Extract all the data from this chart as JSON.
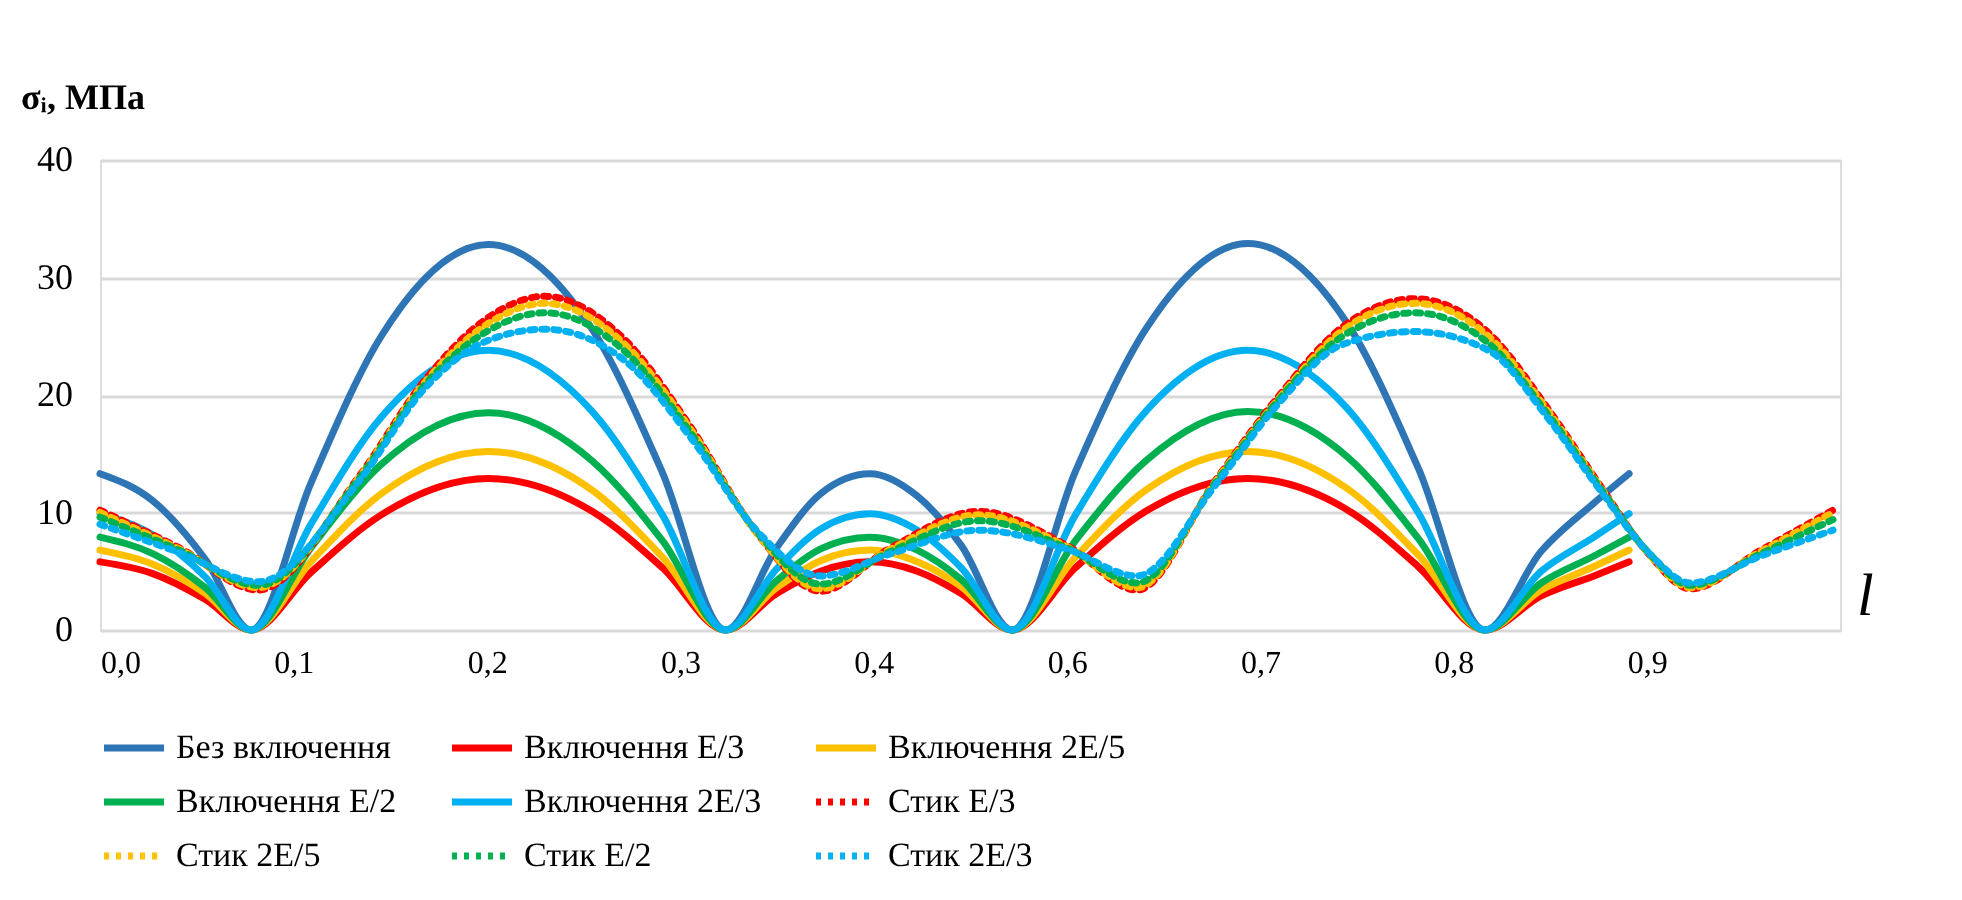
{
  "chart_data": {
    "type": "line",
    "ylabel": "σᵢ, МПа",
    "xlabel": "l",
    "xlim": [
      0,
      0.99
    ],
    "ylim": [
      0,
      40
    ],
    "xticks": [
      {
        "value": 0,
        "label": "0,0"
      },
      {
        "value": 0.11,
        "label": "0,1"
      },
      {
        "value": 0.22,
        "label": "0,2"
      },
      {
        "value": 0.33,
        "label": "0,3"
      },
      {
        "value": 0.44,
        "label": "0,4"
      },
      {
        "value": 0.55,
        "label": "0,6"
      },
      {
        "value": 0.66,
        "label": "0,7"
      },
      {
        "value": 0.77,
        "label": "0,8"
      },
      {
        "value": 0.88,
        "label": "0,9"
      }
    ],
    "yticks": [
      0,
      10,
      20,
      30,
      40
    ],
    "grid": "y",
    "legend": "bottom",
    "marker": "none",
    "series": [
      {
        "name": "Без включення",
        "color": "#2e75b6",
        "line_style": "solid",
        "x": [
          0,
          0.03,
          0.06,
          0.086,
          0.12,
          0.16,
          0.221,
          0.28,
          0.32,
          0.356,
          0.385,
          0.41,
          0.438,
          0.465,
          0.49,
          0.519,
          0.555,
          0.595,
          0.653,
          0.71,
          0.75,
          0.788,
          0.82,
          0.85,
          0.87
        ],
        "values": [
          13.3,
          11.0,
          6.0,
          0,
          12.5,
          25.0,
          32.8,
          25.6,
          13.4,
          0,
          7.0,
          11.6,
          13.3,
          11.4,
          7.2,
          0,
          13.5,
          25.6,
          32.9,
          26.0,
          13.8,
          0,
          6.7,
          10.8,
          13.3
        ]
      },
      {
        "name": "Включення E/3",
        "color": "#ff0000",
        "line_style": "solid",
        "x": [
          0,
          0.03,
          0.06,
          0.086,
          0.12,
          0.16,
          0.221,
          0.28,
          0.32,
          0.356,
          0.385,
          0.41,
          0.438,
          0.465,
          0.49,
          0.519,
          0.555,
          0.595,
          0.653,
          0.71,
          0.75,
          0.788,
          0.82,
          0.85,
          0.87
        ],
        "values": [
          5.8,
          4.8,
          2.6,
          0,
          4.9,
          9.8,
          12.9,
          10.1,
          5.3,
          0,
          3.1,
          5.0,
          5.8,
          5.0,
          3.1,
          0,
          5.3,
          10.1,
          12.9,
          10.2,
          5.4,
          0,
          2.9,
          4.6,
          5.8
        ]
      },
      {
        "name": "Включення 2E/5",
        "color": "#ffc000",
        "line_style": "solid",
        "x": [
          0,
          0.03,
          0.06,
          0.086,
          0.12,
          0.16,
          0.221,
          0.28,
          0.32,
          0.356,
          0.385,
          0.41,
          0.438,
          0.465,
          0.49,
          0.519,
          0.555,
          0.595,
          0.653,
          0.71,
          0.75,
          0.788,
          0.82,
          0.85,
          0.87
        ],
        "values": [
          6.8,
          5.6,
          3.1,
          0,
          5.8,
          11.6,
          15.2,
          11.9,
          6.2,
          0,
          3.6,
          5.9,
          6.8,
          5.8,
          3.7,
          0,
          6.2,
          11.9,
          15.2,
          12.0,
          6.4,
          0,
          3.4,
          5.4,
          6.8
        ]
      },
      {
        "name": "Включення E/2",
        "color": "#00b050",
        "line_style": "solid",
        "x": [
          0,
          0.03,
          0.06,
          0.086,
          0.12,
          0.16,
          0.221,
          0.28,
          0.32,
          0.356,
          0.385,
          0.41,
          0.438,
          0.465,
          0.49,
          0.519,
          0.555,
          0.595,
          0.653,
          0.71,
          0.75,
          0.788,
          0.82,
          0.85,
          0.87
        ],
        "values": [
          7.9,
          6.5,
          3.6,
          0,
          7.0,
          14.1,
          18.5,
          14.4,
          7.6,
          0,
          4.2,
          6.9,
          7.9,
          6.8,
          4.3,
          0,
          7.6,
          14.4,
          18.6,
          14.7,
          7.8,
          0,
          4.0,
          6.3,
          7.9
        ]
      },
      {
        "name": "Включення 2E/3",
        "color": "#00b0f0",
        "line_style": "solid",
        "x": [
          0,
          0.03,
          0.06,
          0.086,
          0.12,
          0.16,
          0.221,
          0.28,
          0.32,
          0.356,
          0.385,
          0.41,
          0.438,
          0.465,
          0.49,
          0.519,
          0.555,
          0.595,
          0.653,
          0.71,
          0.75,
          0.788,
          0.82,
          0.85,
          0.87
        ],
        "values": [
          9.9,
          8.1,
          4.5,
          0,
          9.0,
          18.1,
          23.8,
          18.6,
          9.8,
          0,
          5.2,
          8.6,
          9.9,
          8.5,
          5.3,
          0,
          9.8,
          18.6,
          23.8,
          18.8,
          10.0,
          0,
          5.0,
          7.9,
          9.9
        ]
      },
      {
        "name": "Стик E/3",
        "color": "#ff0000",
        "line_style": "dotted",
        "x": [
          0,
          0.045,
          0.09,
          0.147,
          0.185,
          0.22,
          0.253,
          0.298,
          0.336,
          0.374,
          0.41,
          0.45,
          0.5,
          0.55,
          0.59,
          0.635,
          0.669,
          0.707,
          0.748,
          0.79,
          0.824,
          0.854,
          0.881,
          0.905,
          0.945,
          0.986
        ],
        "values": [
          10.2,
          7.0,
          3.4,
          13.0,
          21.3,
          26.5,
          28.4,
          24.8,
          17.3,
          8.2,
          3.3,
          7.0,
          10.1,
          7.2,
          3.4,
          12.8,
          19.6,
          25.8,
          28.2,
          25.3,
          18.8,
          12.2,
          6.5,
          3.5,
          6.8,
          10.2
        ]
      },
      {
        "name": "Стик 2E/5",
        "color": "#ffc000",
        "line_style": "dotted",
        "x": [
          0,
          0.045,
          0.09,
          0.147,
          0.185,
          0.22,
          0.253,
          0.298,
          0.336,
          0.374,
          0.41,
          0.45,
          0.5,
          0.55,
          0.59,
          0.635,
          0.669,
          0.707,
          0.748,
          0.79,
          0.824,
          0.854,
          0.881,
          0.905,
          0.945,
          0.986
        ],
        "values": [
          10.0,
          6.9,
          3.6,
          12.9,
          21.1,
          26.0,
          27.8,
          24.4,
          17.1,
          8.2,
          3.5,
          6.9,
          9.8,
          7.1,
          3.6,
          12.7,
          19.4,
          25.5,
          27.8,
          25.0,
          18.6,
          12.1,
          6.5,
          3.6,
          6.7,
          10.0
        ]
      },
      {
        "name": "Стик E/2",
        "color": "#00b050",
        "line_style": "dotted",
        "x": [
          0,
          0.045,
          0.09,
          0.147,
          0.185,
          0.22,
          0.253,
          0.298,
          0.336,
          0.374,
          0.41,
          0.45,
          0.5,
          0.55,
          0.59,
          0.635,
          0.669,
          0.707,
          0.748,
          0.79,
          0.824,
          0.854,
          0.881,
          0.905,
          0.945,
          0.986
        ],
        "values": [
          9.6,
          6.8,
          3.8,
          12.8,
          20.9,
          25.4,
          27.0,
          23.8,
          16.8,
          8.3,
          3.9,
          6.7,
          9.3,
          7.0,
          4.0,
          12.6,
          19.3,
          25.0,
          27.0,
          24.4,
          18.3,
          12.0,
          6.6,
          3.8,
          6.5,
          9.4
        ]
      },
      {
        "name": "Стик 2E/3",
        "color": "#00b0f0",
        "line_style": "dotted",
        "x": [
          0,
          0.045,
          0.09,
          0.147,
          0.185,
          0.22,
          0.253,
          0.298,
          0.336,
          0.374,
          0.41,
          0.45,
          0.5,
          0.55,
          0.59,
          0.635,
          0.669,
          0.707,
          0.748,
          0.79,
          0.824,
          0.854,
          0.881,
          0.905,
          0.945,
          0.986
        ],
        "values": [
          9.0,
          6.6,
          4.1,
          12.6,
          20.6,
          24.6,
          25.6,
          23.0,
          16.4,
          8.4,
          4.6,
          6.5,
          8.5,
          6.9,
          4.6,
          12.4,
          19.0,
          24.3,
          25.4,
          23.8,
          18.0,
          11.8,
          6.6,
          4.0,
          6.3,
          8.5
        ]
      }
    ]
  }
}
